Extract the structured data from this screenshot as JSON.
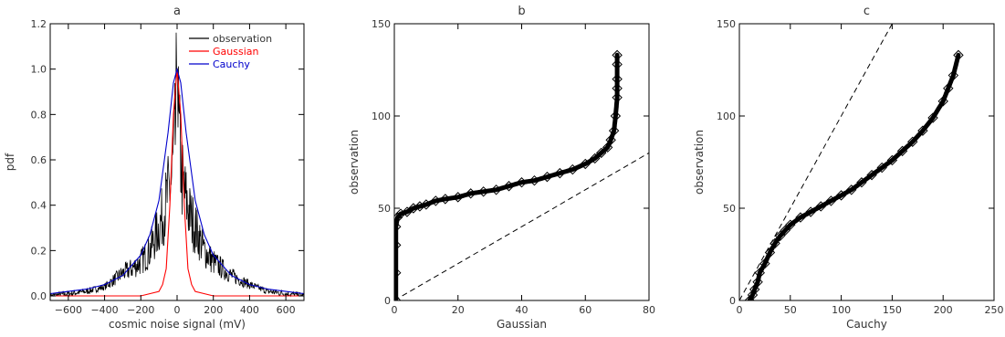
{
  "chart_data": [
    {
      "panel": "a",
      "type": "line",
      "title": "a",
      "xlabel": "cosmic noise signal (mV)",
      "ylabel": "pdf",
      "xlim": [
        -700,
        700
      ],
      "ylim": [
        -0.02,
        1.2
      ],
      "xticks": [
        -600,
        -400,
        -200,
        0,
        200,
        400,
        600
      ],
      "yticks": [
        0.0,
        0.2,
        0.4,
        0.6,
        0.8,
        1.0,
        1.2
      ],
      "xtick_labels": [
        "−600",
        "−400",
        "−200",
        "0",
        "200",
        "400",
        "600"
      ],
      "ytick_labels": [
        "0.0",
        "0.2",
        "0.4",
        "0.6",
        "0.8",
        "1.0",
        "1.2"
      ],
      "legend_position": "top-right",
      "series": [
        {
          "name": "observation",
          "color": "#000000",
          "x": [
            -700,
            -600,
            -500,
            -400,
            -300,
            -250,
            -200,
            -150,
            -100,
            -70,
            -50,
            -30,
            -20,
            -10,
            0,
            10,
            20,
            30,
            50,
            70,
            100,
            150,
            200,
            250,
            300,
            400,
            500,
            600,
            700
          ],
          "y": [
            0.0,
            0.01,
            0.02,
            0.04,
            0.1,
            0.12,
            0.15,
            0.2,
            0.3,
            0.38,
            0.45,
            0.5,
            0.6,
            0.7,
            1.0,
            0.7,
            0.6,
            0.5,
            0.42,
            0.36,
            0.3,
            0.2,
            0.15,
            0.12,
            0.09,
            0.05,
            0.02,
            0.01,
            0.0
          ]
        },
        {
          "name": "Gaussian",
          "color": "#ff0000",
          "x": [
            -700,
            -200,
            -100,
            -80,
            -60,
            -40,
            -20,
            0,
            20,
            40,
            60,
            80,
            100,
            200,
            700
          ],
          "y": [
            0.0,
            0.0,
            0.02,
            0.05,
            0.12,
            0.4,
            0.8,
            1.0,
            0.8,
            0.4,
            0.12,
            0.05,
            0.02,
            0.0,
            0.0
          ]
        },
        {
          "name": "Cauchy",
          "color": "#0000cc",
          "x": [
            -700,
            -600,
            -500,
            -400,
            -300,
            -200,
            -150,
            -100,
            -50,
            -20,
            0,
            20,
            50,
            100,
            150,
            200,
            300,
            400,
            500,
            600,
            700
          ],
          "y": [
            0.01,
            0.02,
            0.03,
            0.05,
            0.09,
            0.18,
            0.27,
            0.42,
            0.72,
            0.94,
            1.0,
            0.94,
            0.72,
            0.42,
            0.27,
            0.18,
            0.09,
            0.05,
            0.03,
            0.02,
            0.01
          ]
        }
      ]
    },
    {
      "panel": "b",
      "type": "scatter",
      "title": "b",
      "xlabel": "Gaussian",
      "ylabel": "observation",
      "xlim": [
        0,
        80
      ],
      "ylim": [
        0,
        150
      ],
      "xticks": [
        0,
        20,
        40,
        60,
        80
      ],
      "yticks": [
        0,
        50,
        100,
        150
      ],
      "xtick_labels": [
        "0",
        "20",
        "40",
        "60",
        "80"
      ],
      "ytick_labels": [
        "0",
        "50",
        "100",
        "150"
      ],
      "reference_line": {
        "x": [
          0,
          80
        ],
        "y": [
          0,
          80
        ],
        "style": "dashed"
      },
      "points": {
        "x": [
          0.5,
          0.5,
          0.5,
          0.5,
          1,
          2,
          4,
          6,
          8,
          10,
          13,
          16,
          20,
          24,
          28,
          32,
          36,
          40,
          44,
          48,
          52,
          56,
          60,
          63,
          65,
          67,
          68,
          69,
          69.5,
          70,
          70,
          70,
          70,
          70
        ],
        "y": [
          0,
          15,
          30,
          40,
          45,
          47,
          48,
          50,
          51,
          52,
          54,
          55,
          56,
          58,
          59,
          60,
          62,
          64,
          65,
          67,
          69,
          71,
          74,
          77,
          80,
          83,
          87,
          92,
          100,
          110,
          115,
          120,
          128,
          133
        ]
      }
    },
    {
      "panel": "c",
      "type": "scatter",
      "title": "c",
      "xlabel": "Cauchy",
      "ylabel": "observation",
      "xlim": [
        0,
        250
      ],
      "ylim": [
        0,
        150
      ],
      "xticks": [
        0,
        50,
        100,
        150,
        200,
        250
      ],
      "yticks": [
        0,
        50,
        100,
        150
      ],
      "xtick_labels": [
        "0",
        "50",
        "100",
        "150",
        "200",
        "250"
      ],
      "ytick_labels": [
        "0",
        "50",
        "100",
        "150"
      ],
      "reference_line": {
        "x": [
          0,
          150
        ],
        "y": [
          0,
          150
        ],
        "style": "dashed"
      },
      "points": {
        "x": [
          10,
          13,
          15,
          18,
          20,
          25,
          30,
          35,
          40,
          45,
          50,
          60,
          70,
          80,
          90,
          100,
          110,
          120,
          130,
          140,
          150,
          160,
          170,
          180,
          190,
          200,
          205,
          210,
          215
        ],
        "y": [
          0,
          3,
          6,
          10,
          15,
          20,
          26,
          31,
          35,
          38,
          41,
          45,
          48,
          51,
          54,
          57,
          60,
          64,
          68,
          72,
          76,
          81,
          86,
          92,
          99,
          108,
          115,
          122,
          133
        ]
      }
    }
  ]
}
